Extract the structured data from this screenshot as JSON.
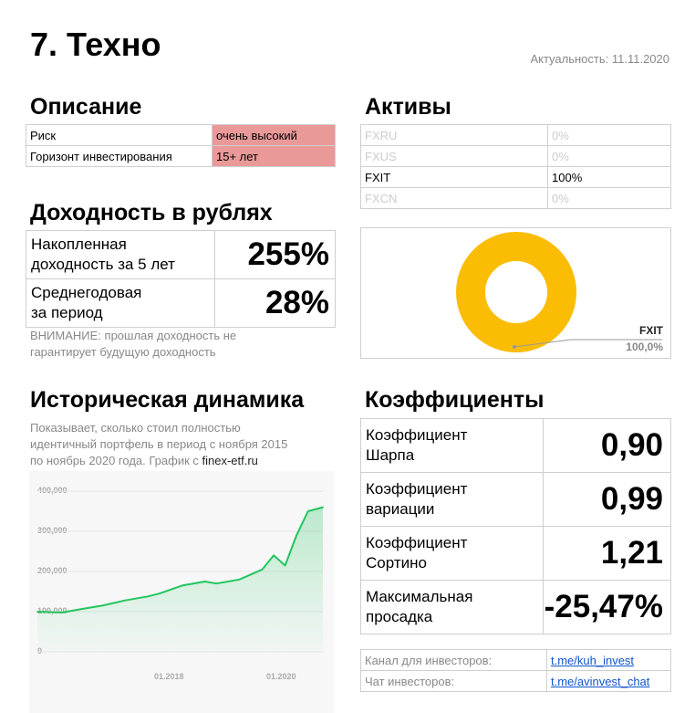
{
  "header": {
    "title": "7. Техно",
    "actuality": "Актуальность: 11.11.2020"
  },
  "description": {
    "heading": "Описание",
    "rows": [
      {
        "label": "Риск",
        "value": "очень высокий"
      },
      {
        "label": "Горизонт инвестирования",
        "value": "15+ лет"
      }
    ]
  },
  "assets": {
    "heading": "Активы",
    "rows": [
      {
        "ticker": "FXRU",
        "share": "0%"
      },
      {
        "ticker": "FXUS",
        "share": "0%"
      },
      {
        "ticker": "FXIT",
        "share": "100%"
      },
      {
        "ticker": "FXCN",
        "share": "0%"
      }
    ],
    "donut": {
      "label": "FXIT",
      "value": "100,0%",
      "color": "#fbbc04"
    }
  },
  "returns": {
    "heading": "Доходность в рублях",
    "rows": [
      {
        "label_line1": "Накопленная",
        "label_line2": "доходность за 5 лет",
        "value": "255%"
      },
      {
        "label_line1": "Среднегодовая",
        "label_line2": "за период",
        "value": "28%"
      }
    ],
    "warning_line1": "ВНИМАНИЕ: прошлая доходность не",
    "warning_line2": "гарантирует будущую доходность"
  },
  "history": {
    "heading": "Историческая динамика",
    "note_line1": "Показывает, сколько стоил полностью",
    "note_line2": "идентичный портфель в период с ноября 2015",
    "note_line3_prefix": "по ноябрь 2020 года. График с ",
    "note_source": "finex-etf.ru"
  },
  "coefficients": {
    "heading": "Коэффициенты",
    "rows": [
      {
        "label_line1": "Коэффициент",
        "label_line2": "Шарпа",
        "value": "0,90"
      },
      {
        "label_line1": "Коэффициент",
        "label_line2": "вариации",
        "value": "0,99"
      },
      {
        "label_line1": "Коэффициент",
        "label_line2": "Сортино",
        "value": "1,21"
      },
      {
        "label_line1": "Максимальная",
        "label_line2": "просадка",
        "value": "-25,47%"
      }
    ]
  },
  "links": [
    {
      "label": "Канал для инвесторов:",
      "url": "t.me/kuh_invest"
    },
    {
      "label": "Чат инвесторов:",
      "url": "t.me/avinvest_chat"
    }
  ],
  "chart_data": {
    "type": "area",
    "y_ticks": [
      "400,000",
      "300,000",
      "200,000",
      "100,000",
      "0"
    ],
    "x_ticks": [
      "01.2018",
      "01.2020"
    ],
    "ylim": [
      0,
      400000
    ],
    "x": [
      2015.87,
      2016.3,
      2016.7,
      2017.0,
      2017.4,
      2017.8,
      2018.0,
      2018.4,
      2018.8,
      2019.0,
      2019.4,
      2019.8,
      2020.0,
      2020.2,
      2020.4,
      2020.6,
      2020.86
    ],
    "values": [
      100000,
      98000,
      108000,
      115000,
      128000,
      138000,
      145000,
      165000,
      175000,
      170000,
      180000,
      205000,
      240000,
      215000,
      290000,
      350000,
      360000
    ],
    "color": "#22c55e"
  }
}
